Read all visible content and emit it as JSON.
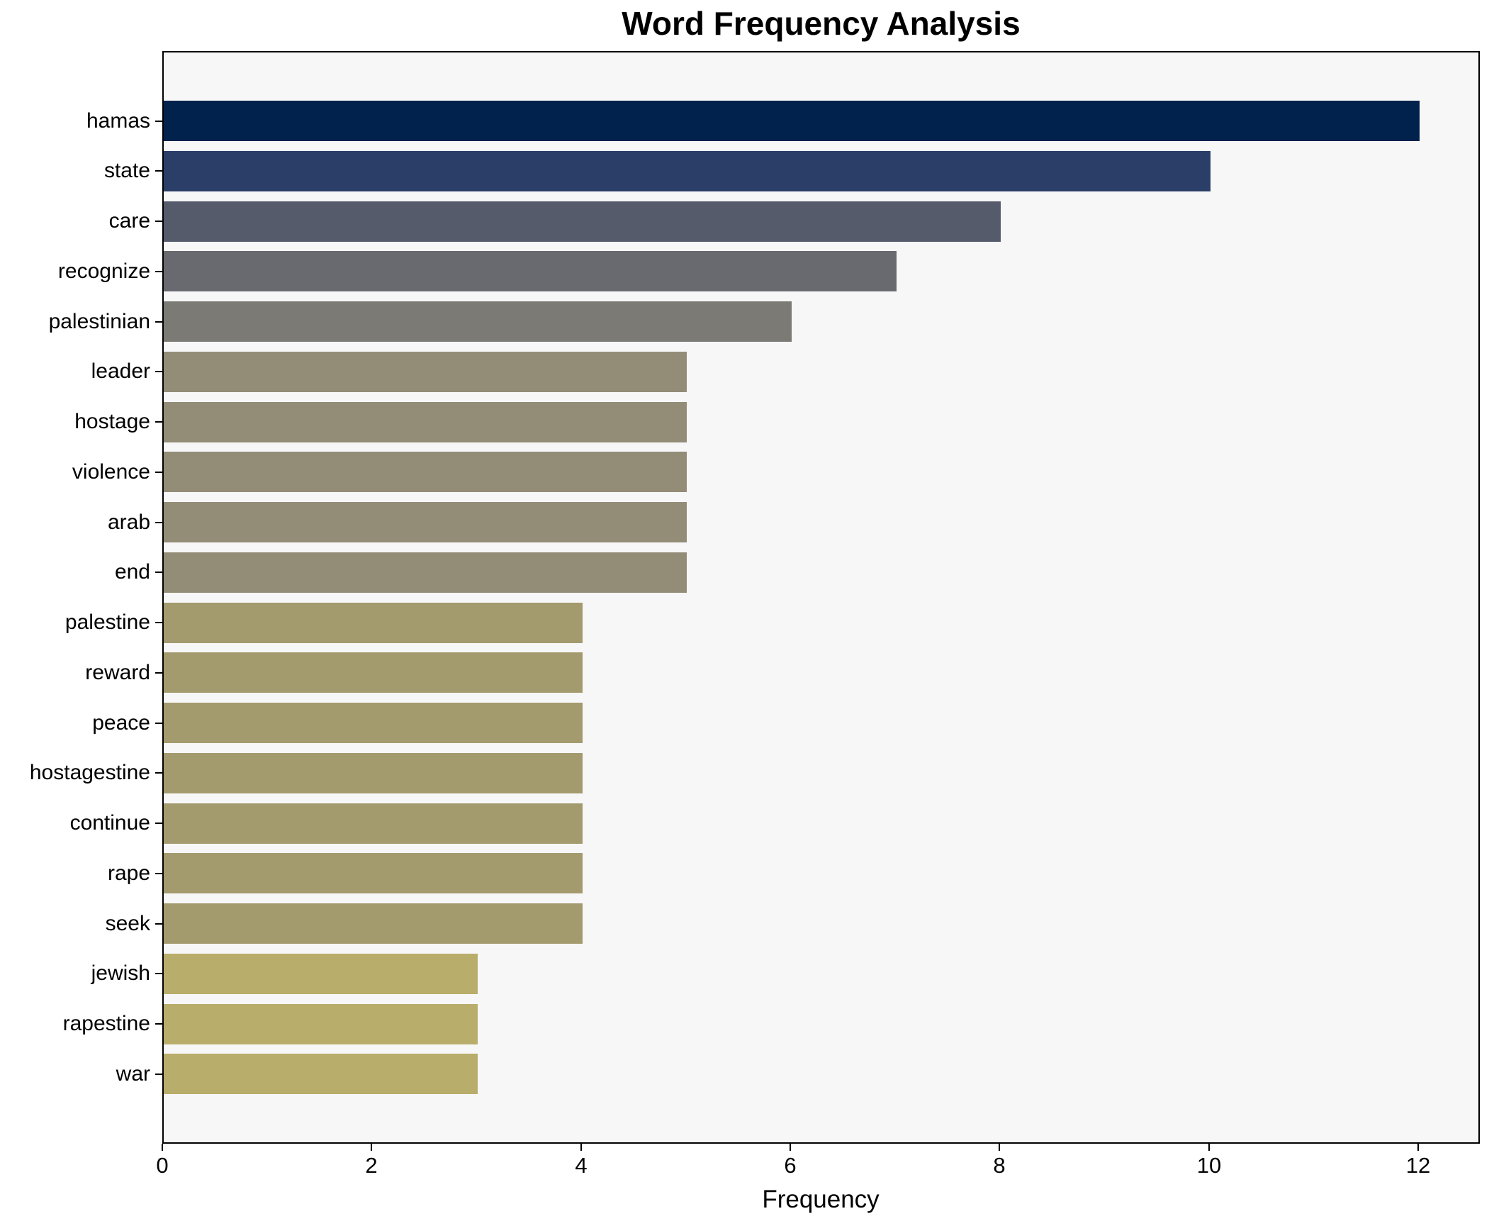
{
  "chart_data": {
    "type": "bar",
    "orientation": "horizontal",
    "title": "Word Frequency Analysis",
    "xlabel": "Frequency",
    "ylabel": "",
    "categories": [
      "hamas",
      "state",
      "care",
      "recognize",
      "palestinian",
      "leader",
      "hostage",
      "violence",
      "arab",
      "end",
      "palestine",
      "reward",
      "peace",
      "hostagestine",
      "continue",
      "rape",
      "seek",
      "jewish",
      "rapestine",
      "war"
    ],
    "values": [
      12,
      10,
      8,
      7,
      6,
      5,
      5,
      5,
      5,
      5,
      4,
      4,
      4,
      4,
      4,
      4,
      4,
      3,
      3,
      3
    ],
    "bar_colors": [
      "#02224e",
      "#2b3e68",
      "#555b6b",
      "#696a70",
      "#7b7a75",
      "#938c77",
      "#938c77",
      "#938c77",
      "#938c77",
      "#938c77",
      "#a39a6e",
      "#a39a6e",
      "#a39a6e",
      "#a39a6e",
      "#a39a6e",
      "#a39a6e",
      "#a39a6e",
      "#b9ad6b",
      "#b9ad6b",
      "#b9ad6b"
    ],
    "xticks": [
      0,
      2,
      4,
      6,
      8,
      10,
      12
    ],
    "xlim": [
      0,
      12.6
    ],
    "grid": false,
    "legend": null,
    "plot_background": "#f7f7f7",
    "figure_background": "#ffffff",
    "spine_color": "#000000",
    "text_color": "#000000"
  }
}
